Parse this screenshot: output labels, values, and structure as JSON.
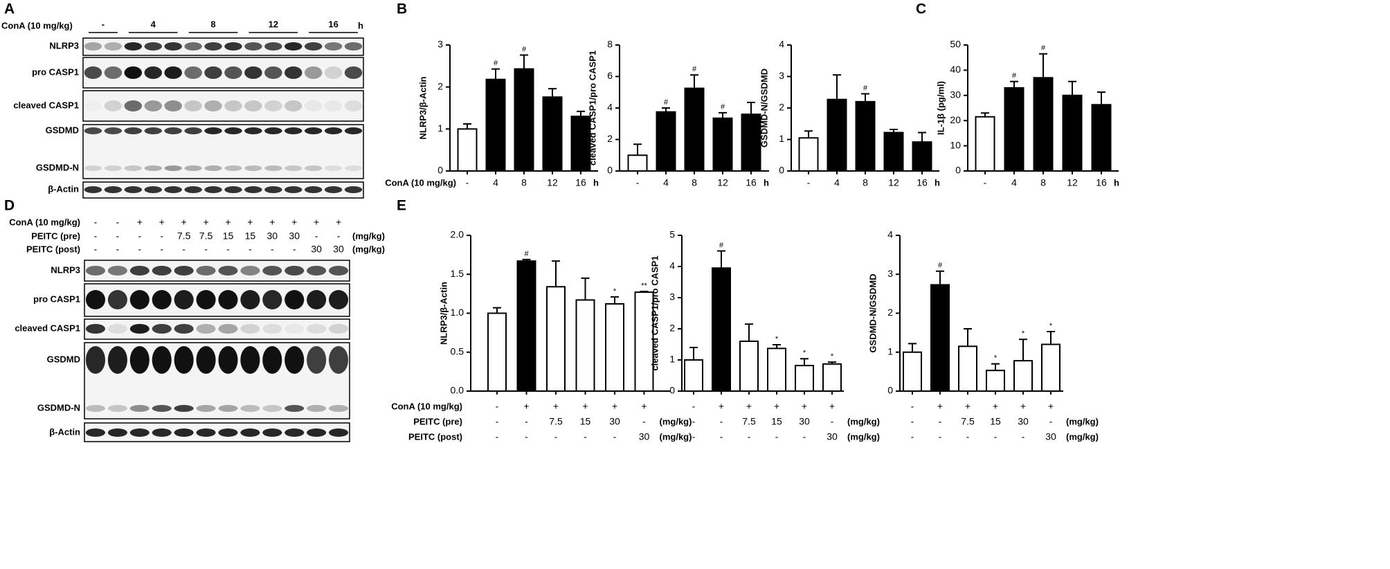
{
  "panels": [
    "A",
    "B",
    "C",
    "D",
    "E"
  ],
  "blots": [
    {
      "header": {
        "label": "ConA (10 mg/kg)",
        "groups": [
          "-",
          "4",
          "8",
          "12",
          "16"
        ],
        "unit": "h"
      },
      "strips": [
        {
          "labels": [
            "NLRP3"
          ]
        },
        {
          "labels": [
            "pro CASP1"
          ]
        },
        {
          "labels": [
            "cleaved CASP1"
          ]
        },
        {
          "labels": [
            "GSDMD",
            "GSDMD-N"
          ]
        },
        {
          "labels": [
            "β-Actin"
          ]
        }
      ]
    },
    {
      "rows": [
        {
          "label": "ConA (10 mg/kg)",
          "values": [
            "-",
            "-",
            "+",
            "+",
            "+",
            "+",
            "+",
            "+",
            "+",
            "+",
            "+",
            "+"
          ]
        },
        {
          "label": "PEITC (pre)",
          "values": [
            "-",
            "-",
            "-",
            "-",
            "7.5",
            "7.5",
            "15",
            "15",
            "30",
            "30",
            "-",
            "-"
          ],
          "unit": "(mg/kg)"
        },
        {
          "label": "PEITC (post)",
          "values": [
            "-",
            "-",
            "-",
            "-",
            "-",
            "-",
            "-",
            "-",
            "-",
            "-",
            "30",
            "30"
          ],
          "unit": "(mg/kg)"
        }
      ],
      "strips": [
        {
          "labels": [
            "NLRP3"
          ]
        },
        {
          "labels": [
            "pro CASP1"
          ]
        },
        {
          "labels": [
            "cleaved CASP1"
          ]
        },
        {
          "labels": [
            "GSDMD",
            "GSDMD-N"
          ]
        },
        {
          "labels": [
            "β-Actin"
          ]
        }
      ]
    }
  ],
  "chart_data": [
    {
      "type": "bar",
      "ylabel": "NLRP3/β-Actin",
      "xlabel": "ConA (10 mg/kg)",
      "categories": [
        "-",
        "4",
        "8",
        "12",
        "16"
      ],
      "unit": "h",
      "values": [
        1.0,
        2.18,
        2.43,
        1.76,
        1.3
      ],
      "errors": [
        0.12,
        0.25,
        0.33,
        0.2,
        0.12
      ],
      "markers": [
        null,
        "#",
        "#",
        null,
        null
      ],
      "bar_colors": [
        "#ffffff",
        "#000000",
        "#000000",
        "#000000",
        "#000000"
      ],
      "ylim": [
        0,
        3
      ],
      "yticks": [
        0,
        1,
        2,
        3
      ]
    },
    {
      "type": "bar",
      "ylabel": "cleaved CASP1/pro CASP1",
      "categories": [
        "-",
        "4",
        "8",
        "12",
        "16"
      ],
      "unit": "h",
      "values": [
        1.0,
        3.75,
        5.25,
        3.35,
        3.6
      ],
      "errors": [
        0.7,
        0.25,
        0.85,
        0.35,
        0.75
      ],
      "markers": [
        null,
        "#",
        "#",
        "#",
        null
      ],
      "bar_colors": [
        "#ffffff",
        "#000000",
        "#000000",
        "#000000",
        "#000000"
      ],
      "ylim": [
        0,
        8
      ],
      "yticks": [
        0,
        2,
        4,
        6,
        8
      ]
    },
    {
      "type": "bar",
      "ylabel": "GSDMD-N/GSDMD",
      "categories": [
        "-",
        "4",
        "8",
        "12",
        "16"
      ],
      "unit": "h",
      "values": [
        1.05,
        2.27,
        2.2,
        1.22,
        0.92
      ],
      "errors": [
        0.22,
        0.78,
        0.25,
        0.1,
        0.3
      ],
      "markers": [
        null,
        null,
        "#",
        null,
        null
      ],
      "bar_colors": [
        "#ffffff",
        "#000000",
        "#000000",
        "#000000",
        "#000000"
      ],
      "ylim": [
        0,
        4
      ],
      "yticks": [
        0,
        1,
        2,
        3,
        4
      ]
    },
    {
      "type": "bar",
      "ylabel": "IL-1β (pg/ml)",
      "categories": [
        "-",
        "4",
        "8",
        "12",
        "16"
      ],
      "unit": "h",
      "values": [
        21.5,
        33,
        37,
        30,
        26.3
      ],
      "errors": [
        1.5,
        2.5,
        9.5,
        5.5,
        5
      ],
      "markers": [
        null,
        "#",
        "#",
        null,
        null
      ],
      "bar_colors": [
        "#ffffff",
        "#000000",
        "#000000",
        "#000000",
        "#000000"
      ],
      "ylim": [
        0,
        50
      ],
      "yticks": [
        0,
        10,
        20,
        30,
        40,
        50
      ]
    },
    {
      "type": "bar",
      "ylabel": "NLRP3/β-Actin",
      "rows": [
        {
          "label": "ConA (10 mg/kg)",
          "values": [
            "-",
            "+",
            "+",
            "+",
            "+",
            "+"
          ]
        },
        {
          "label": "PEITC (pre)",
          "values": [
            "-",
            "-",
            "7.5",
            "15",
            "30",
            "-"
          ],
          "unit": "(mg/kg)"
        },
        {
          "label": "PEITC (post)",
          "values": [
            "-",
            "-",
            "-",
            "-",
            "-",
            "30"
          ],
          "unit": "(mg/kg)"
        }
      ],
      "values": [
        1.0,
        1.67,
        1.34,
        1.17,
        1.12,
        1.27
      ],
      "errors": [
        0.07,
        0.02,
        0.33,
        0.28,
        0.09,
        0.01
      ],
      "markers": [
        null,
        "#",
        null,
        null,
        "*",
        "**"
      ],
      "bar_colors": [
        "#ffffff",
        "#000000",
        "#ffffff",
        "#ffffff",
        "#ffffff",
        "#ffffff"
      ],
      "ylim": [
        0,
        2
      ],
      "yticks": [
        {
          "value": 0,
          "label": "0.0"
        },
        0.5,
        {
          "value": 1,
          "label": "1.0"
        },
        1.5,
        {
          "value": 2,
          "label": "2.0"
        }
      ]
    },
    {
      "type": "bar",
      "ylabel": "cleaved CASP1/pro CASP1",
      "rows": [
        {
          "values": [
            "-",
            "+",
            "+",
            "+",
            "+",
            "+"
          ]
        },
        {
          "values": [
            "-",
            "-",
            "7.5",
            "15",
            "30",
            "-"
          ],
          "unit": "(mg/kg)"
        },
        {
          "values": [
            "-",
            "-",
            "-",
            "-",
            "-",
            "30"
          ],
          "unit": "(mg/kg)"
        }
      ],
      "values": [
        1.0,
        3.95,
        1.6,
        1.37,
        0.82,
        0.87
      ],
      "errors": [
        0.4,
        0.55,
        0.55,
        0.12,
        0.22,
        0.06
      ],
      "markers": [
        null,
        "#",
        null,
        "*",
        "*",
        "*"
      ],
      "bar_colors": [
        "#ffffff",
        "#000000",
        "#ffffff",
        "#ffffff",
        "#ffffff",
        "#ffffff"
      ],
      "ylim": [
        0,
        5
      ],
      "yticks": [
        0,
        1,
        2,
        3,
        4,
        5
      ]
    },
    {
      "type": "bar",
      "ylabel": "GSDMD-N/GSDMD",
      "rows": [
        {
          "values": [
            "-",
            "+",
            "+",
            "+",
            "+",
            "+"
          ]
        },
        {
          "values": [
            "-",
            "-",
            "7.5",
            "15",
            "30",
            "-"
          ],
          "unit": "(mg/kg)"
        },
        {
          "values": [
            "-",
            "-",
            "-",
            "-",
            "-",
            "30"
          ],
          "unit": "(mg/kg)"
        }
      ],
      "values": [
        1.0,
        2.73,
        1.15,
        0.53,
        0.78,
        1.2
      ],
      "errors": [
        0.22,
        0.35,
        0.45,
        0.17,
        0.55,
        0.33
      ],
      "markers": [
        null,
        "#",
        null,
        "*",
        "*",
        "*"
      ],
      "bar_colors": [
        "#ffffff",
        "#000000",
        "#ffffff",
        "#ffffff",
        "#ffffff",
        "#ffffff"
      ],
      "ylim": [
        0,
        4
      ],
      "yticks": [
        0,
        1,
        2,
        3,
        4
      ]
    }
  ]
}
